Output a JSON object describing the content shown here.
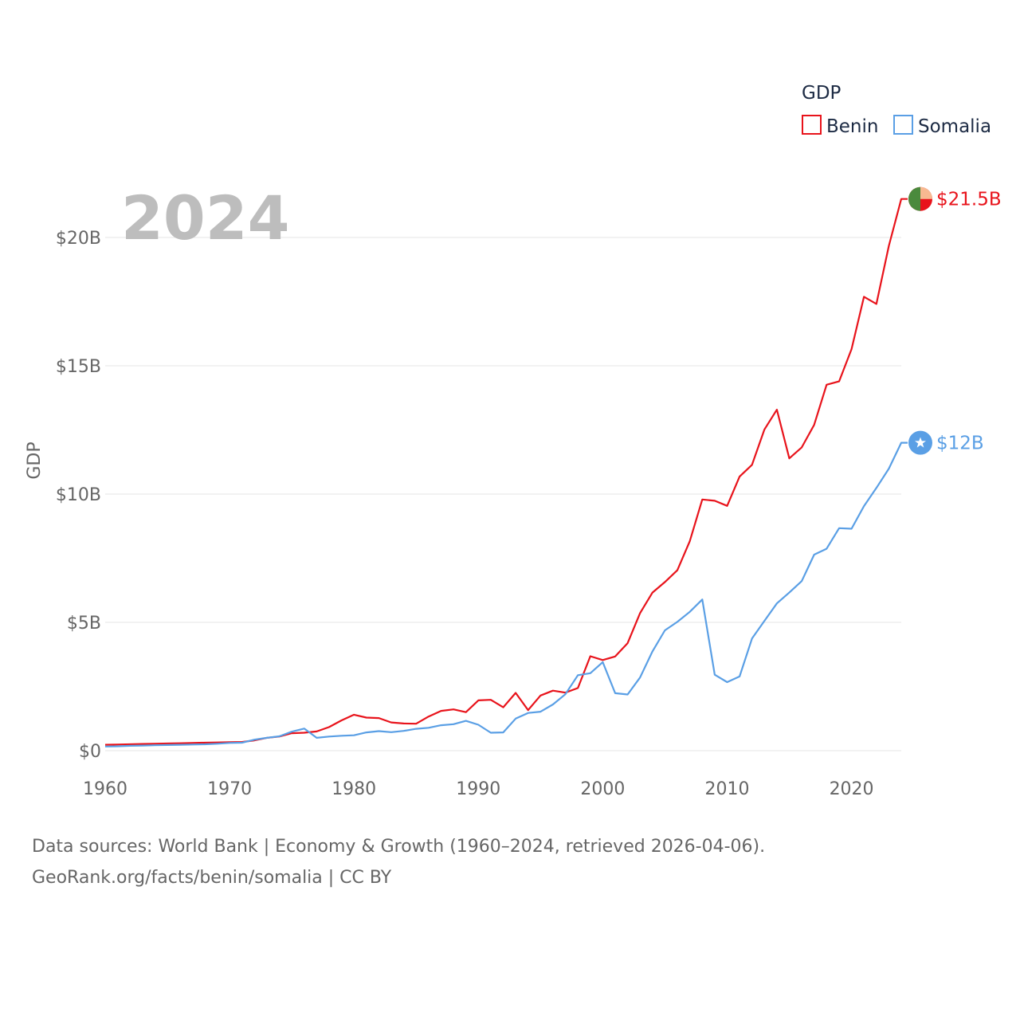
{
  "chart_data": {
    "type": "line",
    "title": "GDP",
    "ylabel": "GDP",
    "xlabel": "",
    "year_label": "2024",
    "xlim": [
      1960,
      2024
    ],
    "ylim": [
      0,
      22000000000
    ],
    "x_ticks": [
      {
        "value": 1960,
        "label": "1960"
      },
      {
        "value": 1970,
        "label": "1970"
      },
      {
        "value": 1980,
        "label": "1980"
      },
      {
        "value": 1990,
        "label": "1990"
      },
      {
        "value": 2000,
        "label": "2000"
      },
      {
        "value": 2010,
        "label": "2010"
      },
      {
        "value": 2020,
        "label": "2020"
      }
    ],
    "y_ticks": [
      {
        "value": 0,
        "label": "$0"
      },
      {
        "value": 5000000000,
        "label": "$5B"
      },
      {
        "value": 10000000000,
        "label": "$10B"
      },
      {
        "value": 15000000000,
        "label": "$15B"
      },
      {
        "value": 20000000000,
        "label": "$20B"
      }
    ],
    "legend_position": "top-right",
    "x": [
      1960,
      1961,
      1962,
      1963,
      1964,
      1965,
      1966,
      1967,
      1968,
      1969,
      1970,
      1971,
      1972,
      1973,
      1974,
      1975,
      1976,
      1977,
      1978,
      1979,
      1980,
      1981,
      1982,
      1983,
      1984,
      1985,
      1986,
      1987,
      1988,
      1989,
      1990,
      1991,
      1992,
      1993,
      1994,
      1995,
      1996,
      1997,
      1998,
      1999,
      2000,
      2001,
      2002,
      2003,
      2004,
      2005,
      2006,
      2007,
      2008,
      2009,
      2010,
      2011,
      2012,
      2013,
      2014,
      2015,
      2016,
      2017,
      2018,
      2019,
      2020,
      2021,
      2022,
      2023,
      2024
    ],
    "series": [
      {
        "name": "Benin",
        "color": "#e8131b",
        "end_label": "$21.5B",
        "values": [
          0.23,
          0.24,
          0.25,
          0.26,
          0.27,
          0.28,
          0.29,
          0.3,
          0.31,
          0.32,
          0.33,
          0.34,
          0.4,
          0.5,
          0.55,
          0.68,
          0.7,
          0.75,
          0.92,
          1.18,
          1.4,
          1.29,
          1.27,
          1.1,
          1.06,
          1.05,
          1.33,
          1.55,
          1.61,
          1.5,
          1.96,
          1.98,
          1.69,
          2.25,
          1.58,
          2.15,
          2.34,
          2.26,
          2.44,
          3.68,
          3.53,
          3.67,
          4.19,
          5.36,
          6.16,
          6.57,
          7.03,
          8.16,
          9.79,
          9.74,
          9.54,
          10.68,
          11.14,
          12.52,
          13.29,
          11.39,
          11.82,
          12.7,
          14.26,
          14.39,
          15.65,
          17.69,
          17.41,
          19.67,
          21.5
        ]
      },
      {
        "name": "Somalia",
        "color": "#5a9fe5",
        "end_label": "$12B",
        "values": [
          0.16,
          0.17,
          0.19,
          0.2,
          0.21,
          0.22,
          0.23,
          0.24,
          0.25,
          0.27,
          0.3,
          0.31,
          0.43,
          0.5,
          0.56,
          0.74,
          0.86,
          0.5,
          0.55,
          0.58,
          0.6,
          0.71,
          0.76,
          0.72,
          0.77,
          0.85,
          0.89,
          0.99,
          1.03,
          1.16,
          1.01,
          0.7,
          0.71,
          1.25,
          1.47,
          1.52,
          1.8,
          2.2,
          2.94,
          3.02,
          3.45,
          2.24,
          2.19,
          2.85,
          3.87,
          4.69,
          5.02,
          5.41,
          5.89,
          2.96,
          2.67,
          2.89,
          4.37,
          5.06,
          5.74,
          6.16,
          6.61,
          7.64,
          7.87,
          8.67,
          8.65,
          9.53,
          10.24,
          10.99,
          12.0
        ]
      }
    ]
  },
  "footer": {
    "line1": "Data sources: World Bank | Economy & Growth (1960–2024, retrieved 2026-04-06).",
    "line2": "GeoRank.org/facts/benin/somalia | CC BY"
  },
  "icons": {
    "benin": "benin-flag-icon",
    "somalia": "somalia-flag-icon"
  },
  "colors": {
    "benin_flag_green": "#4a8a3d",
    "benin_flag_yellow": "#f8b991",
    "benin_flag_red": "#e8131b",
    "somalia_flag_blue": "#5a9fe5"
  }
}
